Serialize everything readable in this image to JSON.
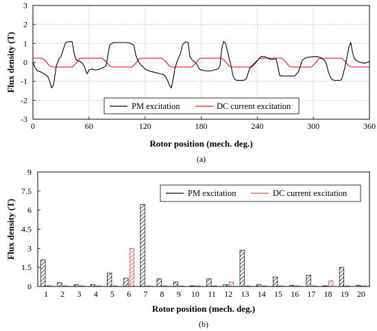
{
  "chart_data": [
    {
      "type": "line",
      "panel_label": "(a)",
      "xlabel": "Rotor position (mech. deg.)",
      "ylabel": "Flux density (T)",
      "xlim": [
        0,
        360
      ],
      "ylim": [
        -3,
        3
      ],
      "xticks": [
        0,
        60,
        120,
        180,
        240,
        300,
        360
      ],
      "yticks": [
        -3,
        -2,
        -1,
        0,
        1,
        2,
        3
      ],
      "grid": true,
      "legend_position": "lower-center",
      "series": [
        {
          "name": "PM excitation",
          "color": "#000000",
          "x": [
            0,
            2,
            5,
            8,
            12,
            16,
            18,
            20,
            22,
            25,
            28,
            30,
            32,
            35,
            38,
            40,
            42,
            44,
            46,
            48,
            50,
            52,
            55,
            57,
            58,
            60,
            63,
            66,
            70,
            74,
            78,
            80,
            82,
            85,
            88,
            92,
            96,
            100,
            104,
            108,
            110,
            112,
            114,
            117,
            120,
            124,
            128,
            132,
            136,
            140,
            142,
            144,
            146,
            148,
            150,
            152,
            155,
            158,
            160,
            162,
            164,
            166,
            168,
            170,
            172,
            174,
            176,
            178,
            180,
            182,
            185,
            190,
            194,
            198,
            200,
            202,
            204,
            206,
            208,
            210,
            212,
            214,
            216,
            218,
            220,
            222,
            225,
            228,
            230,
            232,
            236,
            240,
            244,
            248,
            252,
            256,
            260,
            262,
            264,
            266,
            270,
            275,
            280,
            284,
            288,
            292,
            296,
            300,
            304,
            308,
            312,
            314,
            316,
            318,
            320,
            322,
            324,
            326,
            328,
            330,
            332,
            334,
            336,
            338,
            340,
            342,
            344,
            346,
            350,
            355,
            360
          ],
          "y": [
            0.05,
            -0.25,
            -0.45,
            -0.5,
            -0.6,
            -0.75,
            -1.0,
            -1.35,
            -1.2,
            -0.2,
            0.2,
            0.3,
            0.6,
            1.05,
            1.08,
            1.1,
            1.08,
            0.5,
            0.15,
            0.08,
            0.05,
            0.0,
            -0.2,
            -0.5,
            -0.6,
            -0.4,
            -0.35,
            -0.4,
            -0.38,
            -0.3,
            -0.2,
            0.3,
            0.9,
            1.02,
            1.05,
            1.05,
            1.05,
            1.05,
            1.02,
            0.9,
            0.4,
            0.12,
            -0.05,
            -0.2,
            -0.35,
            -0.45,
            -0.5,
            -0.55,
            -0.6,
            -0.65,
            -0.75,
            -0.95,
            -1.2,
            -1.35,
            -0.9,
            -0.3,
            0.15,
            0.5,
            0.9,
            1.05,
            1.08,
            1.05,
            0.3,
            0.15,
            0.05,
            0.0,
            -0.15,
            -0.35,
            -0.4,
            -0.42,
            -0.45,
            -0.45,
            -0.4,
            -0.35,
            -0.2,
            0.7,
            1.1,
            1.0,
            0.6,
            0.2,
            -0.2,
            -0.7,
            -0.9,
            -0.95,
            -0.95,
            -0.95,
            -0.95,
            -0.9,
            -0.6,
            -0.3,
            -0.1,
            0.1,
            0.3,
            0.3,
            0.2,
            0.15,
            0.2,
            -0.2,
            -0.7,
            -0.72,
            -0.72,
            -0.72,
            -0.72,
            -0.5,
            0.1,
            0.25,
            0.28,
            0.3,
            0.3,
            0.25,
            0.1,
            -0.1,
            -0.5,
            -0.75,
            -0.9,
            -0.95,
            -0.95,
            -0.95,
            -0.95,
            -0.92,
            -0.6,
            -0.2,
            0.3,
            0.8,
            1.05,
            0.5,
            0.2,
            0.1,
            0.0,
            -0.05,
            0.05
          ]
        },
        {
          "name": "DC current excitation",
          "color": "#e8141c",
          "x": [
            0,
            10,
            14,
            18,
            22,
            42,
            46,
            50,
            54,
            74,
            78,
            82,
            86,
            106,
            110,
            114,
            118,
            138,
            142,
            146,
            150,
            170,
            174,
            178,
            182,
            202,
            206,
            210,
            214,
            234,
            238,
            242,
            246,
            266,
            270,
            274,
            278,
            298,
            302,
            306,
            310,
            330,
            334,
            338,
            342,
            360
          ],
          "y": [
            0.22,
            0.22,
            0.05,
            -0.2,
            -0.25,
            -0.25,
            -0.05,
            0.2,
            0.22,
            0.22,
            0.05,
            -0.2,
            -0.25,
            -0.25,
            -0.05,
            0.2,
            0.22,
            0.22,
            0.05,
            -0.2,
            -0.25,
            -0.25,
            -0.05,
            0.2,
            0.22,
            0.22,
            0.05,
            -0.2,
            -0.25,
            -0.25,
            -0.05,
            0.2,
            0.22,
            0.22,
            0.05,
            -0.2,
            -0.25,
            -0.25,
            -0.05,
            0.2,
            0.22,
            0.22,
            0.05,
            -0.2,
            -0.25,
            -0.25
          ]
        }
      ]
    },
    {
      "type": "bar",
      "panel_label": "(b)",
      "xlabel": "Rotor position (mech. deg.)",
      "ylabel": "Flux density (T)",
      "ylim": [
        0,
        9
      ],
      "yticks": [
        "0",
        "1.5",
        "3",
        "4.5",
        "6",
        "7.5",
        "9"
      ],
      "categories": [
        "1",
        "2",
        "3",
        "4",
        "5",
        "6",
        "7",
        "8",
        "9",
        "10",
        "11",
        "12",
        "13",
        "14",
        "15",
        "16",
        "17",
        "18",
        "19",
        "20"
      ],
      "legend_position": "top-right",
      "series": [
        {
          "name": "PM excitation",
          "color": "#000000",
          "values": [
            2.1,
            0.3,
            0.15,
            0.15,
            1.05,
            0.65,
            6.45,
            0.6,
            0.35,
            0.05,
            0.6,
            0.15,
            2.85,
            0.15,
            0.75,
            0.1,
            0.9,
            0.05,
            1.5,
            0.1
          ]
        },
        {
          "name": "DC current excitation",
          "color": "#d9534f",
          "values": [
            0.1,
            0.05,
            0.05,
            0.05,
            0.05,
            3.0,
            0.05,
            0.05,
            0.05,
            0.05,
            0.05,
            0.35,
            0.05,
            0.05,
            0.05,
            0.05,
            0.05,
            0.45,
            0.05,
            0.05
          ]
        }
      ]
    }
  ]
}
